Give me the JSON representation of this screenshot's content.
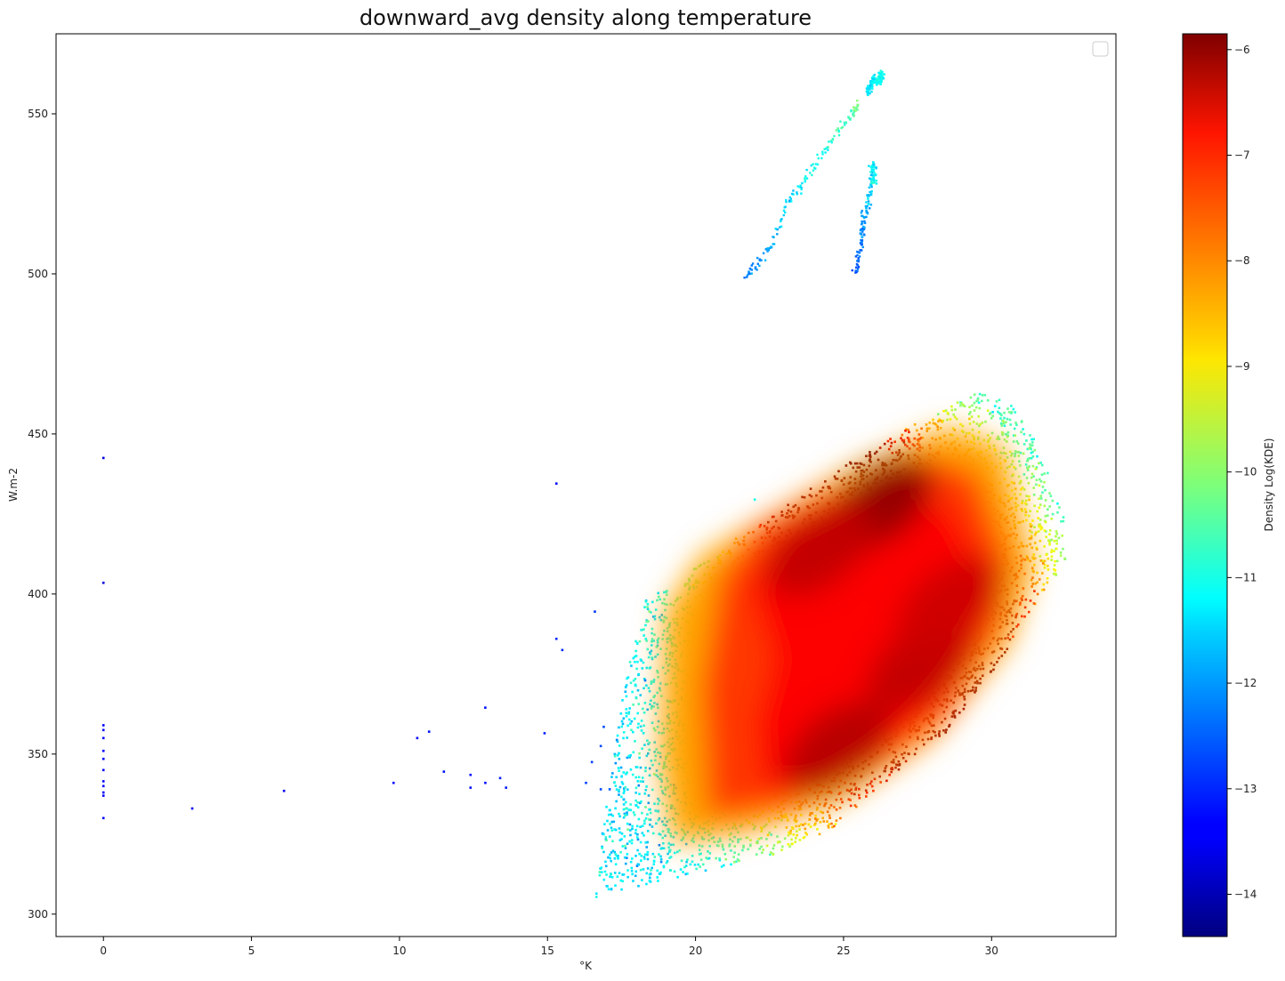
{
  "chart_data": {
    "type": "scatter",
    "title": "downward_avg density along temperature",
    "xlabel": "°K",
    "ylabel": "W.m-2",
    "xlim": [
      -1.6,
      34.2
    ],
    "ylim": [
      293,
      575
    ],
    "xticks": [
      0,
      5,
      10,
      15,
      20,
      25,
      30
    ],
    "yticks": [
      300,
      350,
      400,
      450,
      500,
      550
    ],
    "grid": false,
    "legend": {
      "placement": "top-right",
      "entries": []
    },
    "colorbar": {
      "label": "Density Log(KDE)",
      "range": [
        -14.4,
        -5.85
      ],
      "ticks": [
        -6,
        -7,
        -8,
        -9,
        -10,
        -11,
        -12,
        -13,
        -14
      ],
      "colormap": "jet"
    },
    "outlier_points": [
      {
        "x": 0,
        "y": 442.5,
        "density": -13.6
      },
      {
        "x": 0,
        "y": 403.5,
        "density": -13.6
      },
      {
        "x": 0,
        "y": 359,
        "density": -13.4
      },
      {
        "x": 0,
        "y": 357.5,
        "density": -13.4
      },
      {
        "x": 0,
        "y": 355,
        "density": -13.4
      },
      {
        "x": 0,
        "y": 351,
        "density": -13.4
      },
      {
        "x": 0,
        "y": 348.5,
        "density": -13.4
      },
      {
        "x": 0,
        "y": 345,
        "density": -13.4
      },
      {
        "x": 0,
        "y": 341.5,
        "density": -13.4
      },
      {
        "x": 0,
        "y": 340,
        "density": -13.4
      },
      {
        "x": 0,
        "y": 338,
        "density": -13.4
      },
      {
        "x": 0,
        "y": 337,
        "density": -13.4
      },
      {
        "x": 0,
        "y": 330,
        "density": -13.4
      },
      {
        "x": 3.0,
        "y": 333,
        "density": -13.5
      },
      {
        "x": 6.1,
        "y": 338.5,
        "density": -13.5
      },
      {
        "x": 9.8,
        "y": 341,
        "density": -13.3
      },
      {
        "x": 10.6,
        "y": 355,
        "density": -13.3
      },
      {
        "x": 11.0,
        "y": 357,
        "density": -13.2
      },
      {
        "x": 11.5,
        "y": 344.5,
        "density": -13.2
      },
      {
        "x": 12.4,
        "y": 343.5,
        "density": -13.2
      },
      {
        "x": 12.4,
        "y": 339.5,
        "density": -13.2
      },
      {
        "x": 12.9,
        "y": 341,
        "density": -13.2
      },
      {
        "x": 12.9,
        "y": 364.5,
        "density": -13.2
      },
      {
        "x": 13.4,
        "y": 342.5,
        "density": -13.1
      },
      {
        "x": 13.6,
        "y": 339.5,
        "density": -13.1
      },
      {
        "x": 14.9,
        "y": 356.5,
        "density": -13.1
      },
      {
        "x": 15.3,
        "y": 434.5,
        "density": -13.3
      },
      {
        "x": 15.3,
        "y": 386,
        "density": -13.0
      },
      {
        "x": 15.5,
        "y": 382.5,
        "density": -13.0
      },
      {
        "x": 16.3,
        "y": 341,
        "density": -12.8
      },
      {
        "x": 16.5,
        "y": 347.5,
        "density": -12.8
      },
      {
        "x": 16.6,
        "y": 394.5,
        "density": -12.9
      },
      {
        "x": 16.8,
        "y": 352.5,
        "density": -12.7
      },
      {
        "x": 16.8,
        "y": 339,
        "density": -12.7
      },
      {
        "x": 16.9,
        "y": 358.5,
        "density": -12.7
      },
      {
        "x": 17.1,
        "y": 339,
        "density": -12.6
      },
      {
        "x": 18.3,
        "y": 373,
        "density": -12.3
      },
      {
        "x": 22.0,
        "y": 429.5,
        "density": -11.0
      }
    ],
    "upper_streaks": [
      {
        "name": "",
        "density_range": [
          -12.4,
          -10.2
        ],
        "points": [
          [
            21.7,
            499.5
          ],
          [
            22.1,
            503
          ],
          [
            22.6,
            510
          ],
          [
            23.1,
            522
          ],
          [
            23.6,
            528
          ],
          [
            24.2,
            536
          ],
          [
            24.8,
            544
          ],
          [
            25.3,
            550
          ],
          [
            25.5,
            553
          ]
        ]
      },
      {
        "name": "",
        "density_range": [
          -12.6,
          -11.0
        ],
        "points": [
          [
            25.4,
            500
          ],
          [
            25.6,
            510
          ],
          [
            25.7,
            518
          ],
          [
            25.9,
            526
          ],
          [
            26.0,
            535
          ],
          [
            26.0,
            528
          ]
        ]
      },
      {
        "name": "",
        "density_range": [
          -11.5,
          -11.0
        ],
        "points": [
          [
            25.8,
            556
          ],
          [
            26.0,
            561
          ],
          [
            26.2,
            560
          ],
          [
            26.3,
            563
          ]
        ]
      }
    ],
    "main_cloud": {
      "x_range": [
        16.4,
        32.6
      ],
      "y_range": [
        305,
        464
      ],
      "density_range": [
        -11.5,
        -5.85
      ],
      "density_peaks": [
        {
          "x": 26.2,
          "y": 428,
          "density": -6.0
        },
        {
          "x": 24.2,
          "y": 414,
          "density": -6.4
        },
        {
          "x": 24.8,
          "y": 352,
          "density": -6.3
        },
        {
          "x": 27.6,
          "y": 378,
          "density": -6.4
        },
        {
          "x": 28.6,
          "y": 397,
          "density": -6.5
        }
      ]
    }
  }
}
